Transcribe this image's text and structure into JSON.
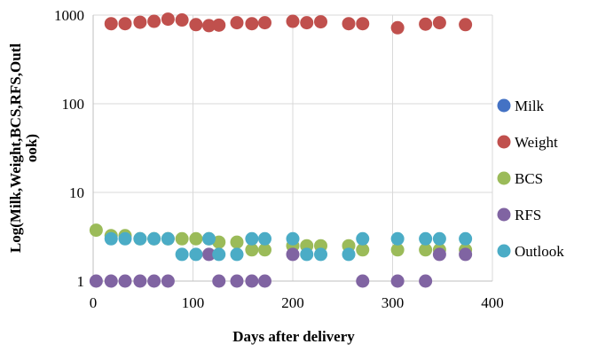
{
  "chart_data": {
    "type": "scatter",
    "title": "",
    "xlabel": "Days after delivery",
    "ylabel": "Log(Milk,Weight,BCS,RFS,Outlook)",
    "ylabel_lines": [
      "Log(Milk,Weight,BCS,RFS,Outl",
      "ook)"
    ],
    "y_scale": "log",
    "xlim": [
      0,
      400
    ],
    "ylim": [
      1,
      1000
    ],
    "x_ticks": [
      0,
      100,
      200,
      300,
      400
    ],
    "y_ticks": [
      1,
      10,
      100,
      1000
    ],
    "grid": "vertical",
    "legend_position": "right",
    "series": [
      {
        "name": "Milk",
        "color": "#4472C4",
        "points": []
      },
      {
        "name": "Weight",
        "color": "#C0504D",
        "points": [
          [
            18,
            800
          ],
          [
            32,
            800
          ],
          [
            47,
            830
          ],
          [
            61,
            850
          ],
          [
            75,
            900
          ],
          [
            89,
            880
          ],
          [
            103,
            780
          ],
          [
            116,
            760
          ],
          [
            126,
            770
          ],
          [
            144,
            820
          ],
          [
            159,
            800
          ],
          [
            172,
            820
          ],
          [
            200,
            850
          ],
          [
            214,
            820
          ],
          [
            228,
            840
          ],
          [
            256,
            800
          ],
          [
            270,
            800
          ],
          [
            305,
            720
          ],
          [
            333,
            790
          ],
          [
            347,
            820
          ],
          [
            373,
            780
          ]
        ]
      },
      {
        "name": "BCS",
        "color": "#9BBB59",
        "points": [
          [
            3,
            3.75
          ],
          [
            18,
            3.25
          ],
          [
            32,
            3.25
          ],
          [
            47,
            3
          ],
          [
            61,
            3
          ],
          [
            75,
            3
          ],
          [
            89,
            3
          ],
          [
            103,
            3
          ],
          [
            116,
            3
          ],
          [
            126,
            2.75
          ],
          [
            144,
            2.75
          ],
          [
            159,
            2.25
          ],
          [
            172,
            2.25
          ],
          [
            200,
            2.5
          ],
          [
            214,
            2.5
          ],
          [
            228,
            2.5
          ],
          [
            256,
            2.5
          ],
          [
            270,
            2.25
          ],
          [
            305,
            2.25
          ],
          [
            333,
            2.25
          ],
          [
            347,
            2.25
          ],
          [
            373,
            2.25
          ]
        ]
      },
      {
        "name": "RFS",
        "color": "#8064A2",
        "points": [
          [
            3,
            1
          ],
          [
            18,
            1
          ],
          [
            32,
            1
          ],
          [
            47,
            1
          ],
          [
            61,
            1
          ],
          [
            75,
            1
          ],
          [
            116,
            2
          ],
          [
            126,
            1
          ],
          [
            144,
            1
          ],
          [
            159,
            1
          ],
          [
            172,
            1
          ],
          [
            200,
            2
          ],
          [
            270,
            1
          ],
          [
            305,
            1
          ],
          [
            333,
            1
          ],
          [
            347,
            2
          ],
          [
            373,
            2
          ]
        ]
      },
      {
        "name": "Outlook",
        "color": "#4BACC6",
        "points": [
          [
            18,
            3
          ],
          [
            32,
            3
          ],
          [
            47,
            3
          ],
          [
            61,
            3
          ],
          [
            75,
            3
          ],
          [
            89,
            2
          ],
          [
            103,
            2
          ],
          [
            116,
            3
          ],
          [
            126,
            2
          ],
          [
            144,
            2
          ],
          [
            159,
            3
          ],
          [
            172,
            3
          ],
          [
            200,
            3
          ],
          [
            214,
            2
          ],
          [
            228,
            2
          ],
          [
            256,
            2
          ],
          [
            270,
            3
          ],
          [
            305,
            3
          ],
          [
            333,
            3
          ],
          [
            347,
            3
          ],
          [
            373,
            3
          ]
        ]
      }
    ]
  }
}
